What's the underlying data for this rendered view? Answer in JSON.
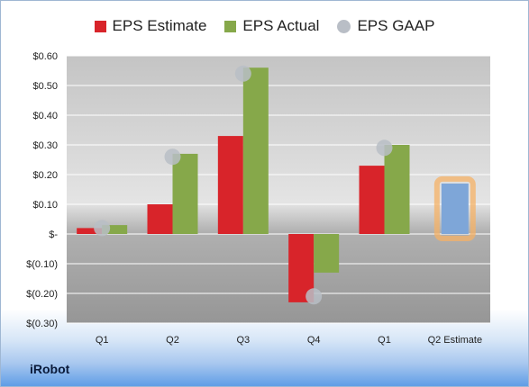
{
  "brand": "iRobot",
  "chart_data": {
    "type": "bar",
    "title": "",
    "xlabel": "",
    "ylabel": "",
    "ylim": [
      -0.3,
      0.6
    ],
    "yticks": [
      {
        "value": 0.6,
        "label": "$0.60"
      },
      {
        "value": 0.5,
        "label": "$0.50"
      },
      {
        "value": 0.4,
        "label": "$0.40"
      },
      {
        "value": 0.3,
        "label": "$0.30"
      },
      {
        "value": 0.2,
        "label": "$0.20"
      },
      {
        "value": 0.1,
        "label": "$0.10"
      },
      {
        "value": 0.0,
        "label": "$-"
      },
      {
        "value": -0.1,
        "label": "$(0.10)"
      },
      {
        "value": -0.2,
        "label": "$(0.20)"
      },
      {
        "value": -0.3,
        "label": "$(0.30)"
      }
    ],
    "grid": true,
    "legend_position": "top",
    "categories": [
      "Q1",
      "Q2",
      "Q3",
      "Q4",
      "Q1",
      "Q2 Estimate"
    ],
    "series": [
      {
        "name": "EPS Estimate",
        "color": "#d8242a",
        "values": [
          0.02,
          0.1,
          0.33,
          -0.23,
          0.23,
          null
        ]
      },
      {
        "name": "EPS Actual",
        "color": "#86a84a",
        "values": [
          0.03,
          0.27,
          0.56,
          -0.13,
          0.3,
          null
        ]
      },
      {
        "name": "EPS GAAP",
        "color": "#b9bec6",
        "marker": "circle",
        "values": [
          0.02,
          0.26,
          0.54,
          -0.21,
          0.29,
          null
        ]
      }
    ],
    "estimate_bar": {
      "category": "Q2 Estimate",
      "value": 0.17,
      "color": "#7ea6d8",
      "highlight_color": "#f5b266"
    }
  }
}
